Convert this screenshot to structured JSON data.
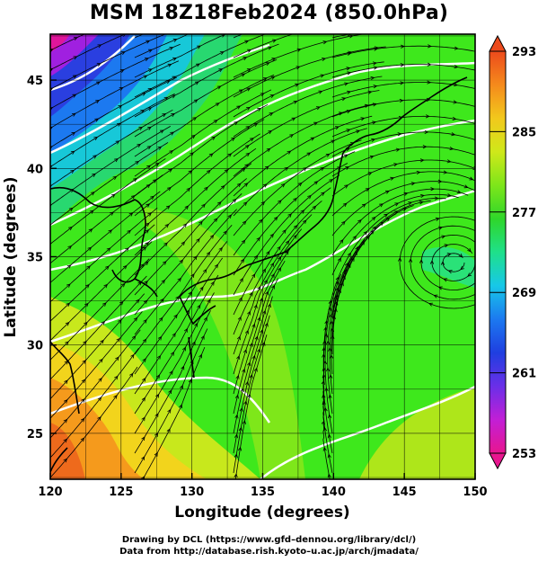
{
  "title": "MSM 18Z18Feb2024 (850.0hPa)",
  "chart_data": {
    "type": "heatmap",
    "title": "MSM 18Z18Feb2024 (850.0hPa)",
    "xlabel": "Longitude (degrees)",
    "ylabel": "Latitude  (degrees)",
    "xlim": [
      120,
      150
    ],
    "ylim": [
      22.4,
      47.6
    ],
    "x_ticks": [
      120,
      125,
      130,
      135,
      140,
      145,
      150
    ],
    "y_ticks": [
      25,
      30,
      35,
      40,
      45
    ],
    "grid": true,
    "colorbar": {
      "min": 253,
      "max": 293,
      "tick_labels": [
        293,
        285,
        277,
        269,
        261,
        253
      ],
      "colors": [
        "#e8168f",
        "#c21fd6",
        "#6a2fe8",
        "#1f3fe0",
        "#1c79f0",
        "#17c8e8",
        "#1fe08a",
        "#2fd62a",
        "#7ee61a",
        "#cfe81a",
        "#f2c81c",
        "#f58a1c",
        "#ec4a1c"
      ]
    },
    "field": "temperature",
    "overlays": [
      "streamlines",
      "coastlines",
      "isotherms"
    ]
  },
  "footer": {
    "line1": "Drawing by DCL (https://www.gfd–dennou.org/library/dcl/)",
    "line2": "Data from http://database.rish.kyoto–u.ac.jp/arch/jmadata/"
  }
}
